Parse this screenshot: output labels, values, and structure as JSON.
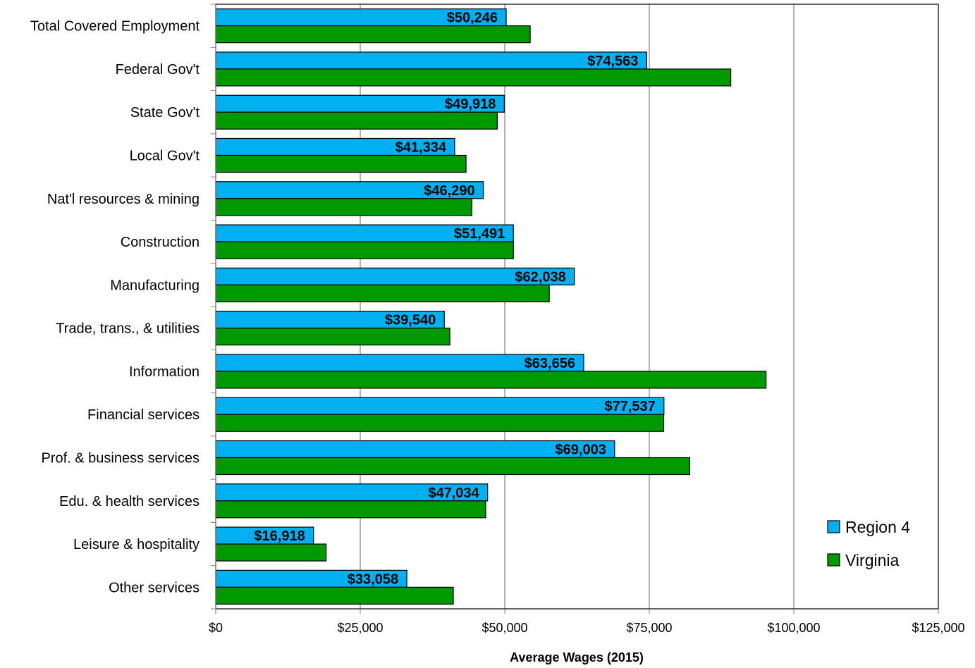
{
  "chart_data": {
    "type": "bar",
    "orientation": "horizontal",
    "title": "",
    "xlabel": "Average Wages (2015)",
    "ylabel": "",
    "xlim": [
      0,
      125000
    ],
    "x_ticks": [
      0,
      25000,
      50000,
      75000,
      100000,
      125000
    ],
    "x_tick_labels": [
      "$0",
      "$25,000",
      "$50,000",
      "$75,000",
      "$100,000",
      "$125,000"
    ],
    "grid": "vertical",
    "legend_position": "bottom-right",
    "categories": [
      "Total Covered Employment",
      "Federal Gov't",
      "State Gov't",
      "Local Gov't",
      "Nat'l resources & mining",
      "Construction",
      "Manufacturing",
      "Trade, trans., & utilities",
      "Information",
      "Financial services",
      "Prof. & business services",
      "Edu. & health services",
      "Leisure & hospitality",
      "Other services"
    ],
    "series": [
      {
        "name": "Region 4",
        "color": "#00B0F0",
        "values": [
          50246,
          74563,
          49918,
          41334,
          46290,
          51491,
          62038,
          39540,
          63656,
          77537,
          69003,
          47034,
          16918,
          33058
        ],
        "data_labels": [
          "$50,246",
          "$74,563",
          "$49,918",
          "$41,334",
          "$46,290",
          "$51,491",
          "$62,038",
          "$39,540",
          "$63,656",
          "$77,537",
          "$69,003",
          "$47,034",
          "$16,918",
          "$33,058"
        ]
      },
      {
        "name": "Virginia",
        "color": "#009900",
        "values": [
          54400,
          89100,
          48700,
          43300,
          44300,
          51500,
          57700,
          40500,
          95200,
          77500,
          82000,
          46700,
          19100,
          41100
        ]
      }
    ]
  }
}
